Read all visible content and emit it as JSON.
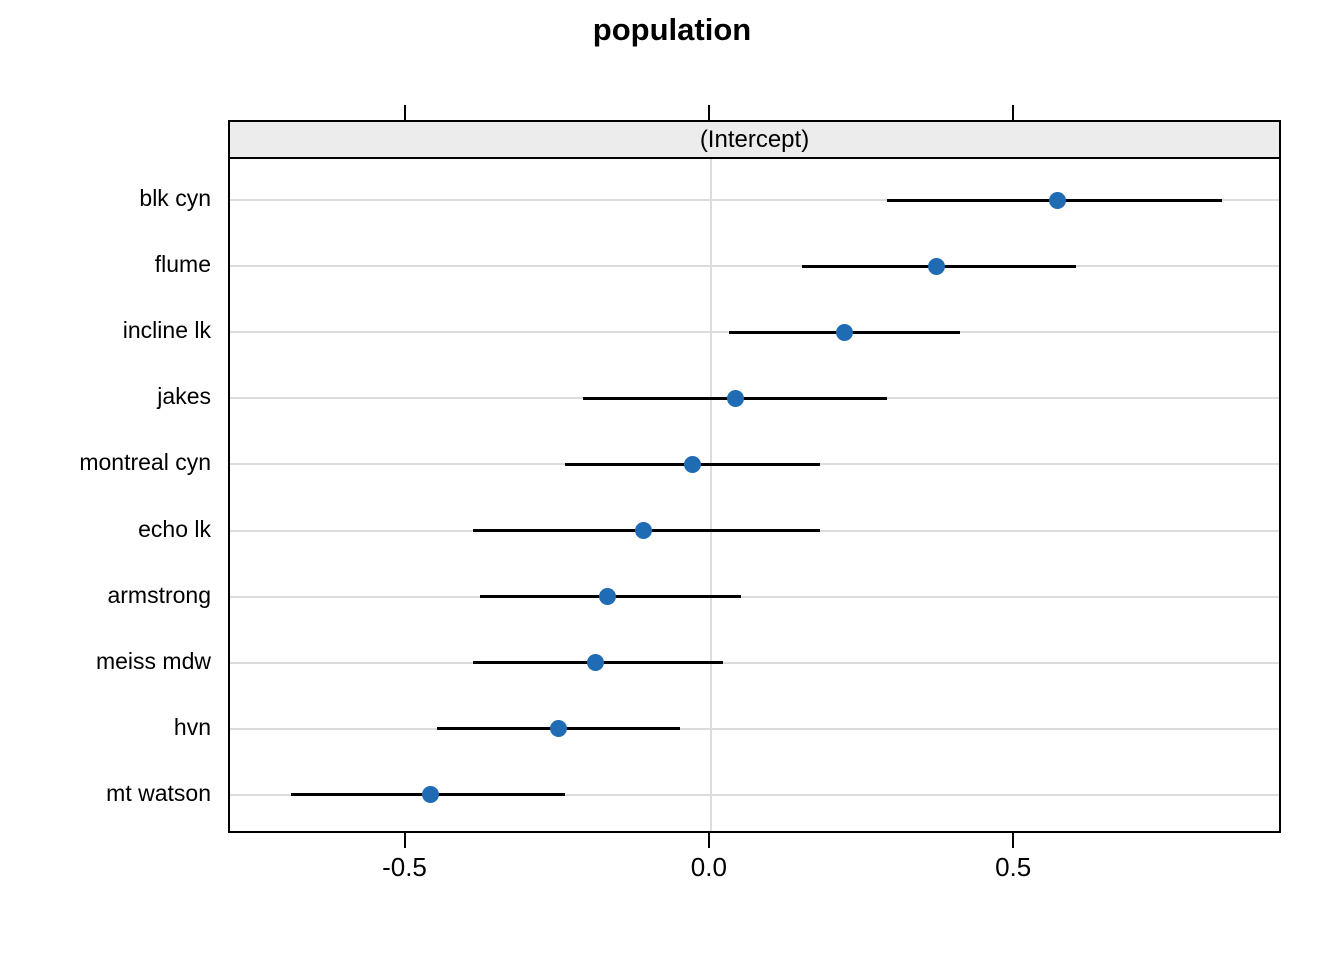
{
  "title": "population",
  "strip": {
    "label": "(Intercept)"
  },
  "x_axis": {
    "tick_labels": [
      "-0.5",
      "0.0",
      "0.5"
    ],
    "tick_values": [
      -0.5,
      0.0,
      0.5
    ]
  },
  "colors": {
    "point": "#1f6cb4",
    "interval_line": "#000000",
    "grid": "#dcdcdc",
    "strip_bg": "#ececec",
    "border": "#000000"
  },
  "chart_data": {
    "type": "scatter",
    "subtype": "dotplot-with-intervals",
    "title": "population",
    "panel_label": "(Intercept)",
    "orientation": "horizontal",
    "categories": [
      "blk cyn",
      "flume",
      "incline lk",
      "jakes",
      "montreal cyn",
      "echo lk",
      "armstrong",
      "meiss mdw",
      "hvn",
      "mt watson"
    ],
    "series": [
      {
        "name": "(Intercept)",
        "values": [
          0.57,
          0.37,
          0.22,
          0.04,
          -0.03,
          -0.11,
          -0.17,
          -0.19,
          -0.25,
          -0.46
        ],
        "ci_low": [
          0.29,
          0.15,
          0.03,
          -0.21,
          -0.24,
          -0.39,
          -0.38,
          -0.39,
          -0.45,
          -0.69
        ],
        "ci_high": [
          0.84,
          0.6,
          0.41,
          0.29,
          0.18,
          0.18,
          0.05,
          0.02,
          -0.05,
          -0.24
        ]
      }
    ],
    "xlim": [
      -0.79,
      0.94
    ],
    "x_ticks": [
      -0.5,
      0.0,
      0.5
    ],
    "grid": true,
    "legend": false
  }
}
